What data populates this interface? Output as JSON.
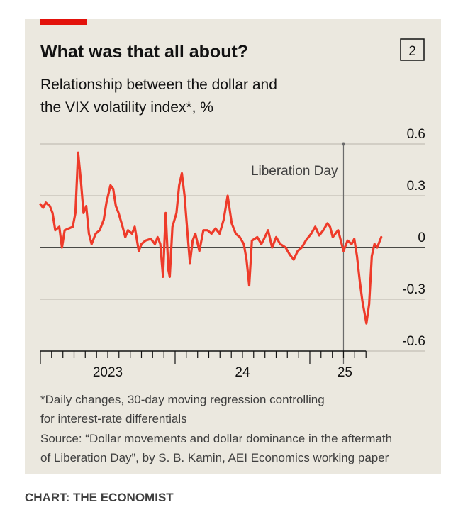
{
  "header": {
    "title": "What was that all about?",
    "number": "2",
    "subtitle_lines": [
      "Relationship between the dollar and",
      "the VIX volatility index*, %"
    ]
  },
  "chart_data": {
    "type": "line",
    "x": [
      2023.0,
      2023.02,
      2023.04,
      2023.07,
      2023.09,
      2023.11,
      2023.14,
      2023.16,
      2023.18,
      2023.21,
      2023.24,
      2023.26,
      2023.28,
      2023.3,
      2023.32,
      2023.34,
      2023.36,
      2023.38,
      2023.41,
      2023.44,
      2023.47,
      2023.49,
      2023.52,
      2023.54,
      2023.56,
      2023.58,
      2023.61,
      2023.63,
      2023.65,
      2023.68,
      2023.7,
      2023.73,
      2023.75,
      2023.78,
      2023.82,
      2023.85,
      2023.87,
      2023.89,
      2023.91,
      2023.93,
      2023.95,
      2023.96,
      2023.98,
      2024.01,
      2024.03,
      2024.05,
      2024.07,
      2024.09,
      2024.11,
      2024.13,
      2024.15,
      2024.18,
      2024.21,
      2024.24,
      2024.27,
      2024.3,
      2024.33,
      2024.36,
      2024.39,
      2024.42,
      2024.45,
      2024.48,
      2024.51,
      2024.53,
      2024.55,
      2024.57,
      2024.61,
      2024.64,
      2024.66,
      2024.69,
      2024.72,
      2024.75,
      2024.78,
      2024.82,
      2024.85,
      2024.88,
      2024.91,
      2024.94,
      2024.97,
      2025.01,
      2025.04,
      2025.07,
      2025.1,
      2025.13,
      2025.15,
      2025.17,
      2025.21,
      2025.23,
      2025.25,
      2025.28,
      2025.31,
      2025.33,
      2025.35,
      2025.37,
      2025.39,
      2025.42,
      2025.44,
      2025.46,
      2025.48,
      2025.5,
      2025.53
    ],
    "series": [
      {
        "color": "#ee3b2a",
        "values": [
          0.25,
          0.23,
          0.26,
          0.24,
          0.2,
          0.1,
          0.12,
          0,
          0.1,
          0.11,
          0.12,
          0.2,
          0.55,
          0.39,
          0.2,
          0.24,
          0.08,
          0.02,
          0.08,
          0.1,
          0.16,
          0.26,
          0.36,
          0.34,
          0.24,
          0.2,
          0.12,
          0.06,
          0.1,
          0.08,
          0.12,
          -0.02,
          0.02,
          0.04,
          0.05,
          0.02,
          0.06,
          0.02,
          -0.17,
          0.2,
          -0.13,
          -0.17,
          0.12,
          0.2,
          0.36,
          0.43,
          0.3,
          0.1,
          -0.09,
          0.04,
          0.08,
          -0.02,
          0.1,
          0.1,
          0.08,
          0.11,
          0.08,
          0.16,
          0.3,
          0.14,
          0.08,
          0.06,
          0.02,
          -0.07,
          -0.22,
          0.04,
          0.06,
          0.02,
          0.05,
          0.1,
          0,
          0.06,
          0.02,
          0,
          -0.04,
          -0.07,
          -0.02,
          0,
          0.04,
          0.08,
          0.12,
          0.07,
          0.1,
          0.14,
          0.12,
          0.06,
          0.1,
          0.04,
          -0.02,
          0.04,
          0.02,
          0.05,
          -0.05,
          -0.19,
          -0.31,
          -0.44,
          -0.33,
          -0.05,
          0.02,
          0,
          0.06
        ]
      }
    ],
    "xlim": [
      2023,
      2025.858
    ],
    "ylim": [
      -0.6,
      0.6
    ],
    "yticks": [
      -0.6,
      -0.3,
      0,
      0.3,
      0.6
    ],
    "xticks": [
      2023,
      2023.083,
      2023.167,
      2023.25,
      2023.333,
      2023.417,
      2023.5,
      2023.583,
      2023.667,
      2023.75,
      2023.833,
      2023.917,
      2024,
      2024.083,
      2024.167,
      2024.25,
      2024.333,
      2024.417,
      2024.5,
      2024.583,
      2024.667,
      2024.75,
      2024.833,
      2024.917,
      2025,
      2025.083,
      2025.167,
      2025.25,
      2025.333,
      2025.417
    ],
    "xtick_labels": [
      {
        "value": 2023.5,
        "label": "2023"
      },
      {
        "value": 2024.5,
        "label": "24"
      },
      {
        "value": 2025.26,
        "label": "25"
      }
    ],
    "grid": true,
    "annotation": {
      "text": "Liberation Day",
      "x": 2025.25
    }
  },
  "footnote_lines": [
    "*Daily changes, 30-day moving regression controlling",
    "for interest-rate differentials"
  ],
  "source_lines": [
    "Source: “Dollar movements and dollar dominance in the aftermath",
    "of Liberation Day”, by S. B. Kamin, AEI Economics working paper"
  ],
  "credit": "CHART: THE ECONOMIST"
}
